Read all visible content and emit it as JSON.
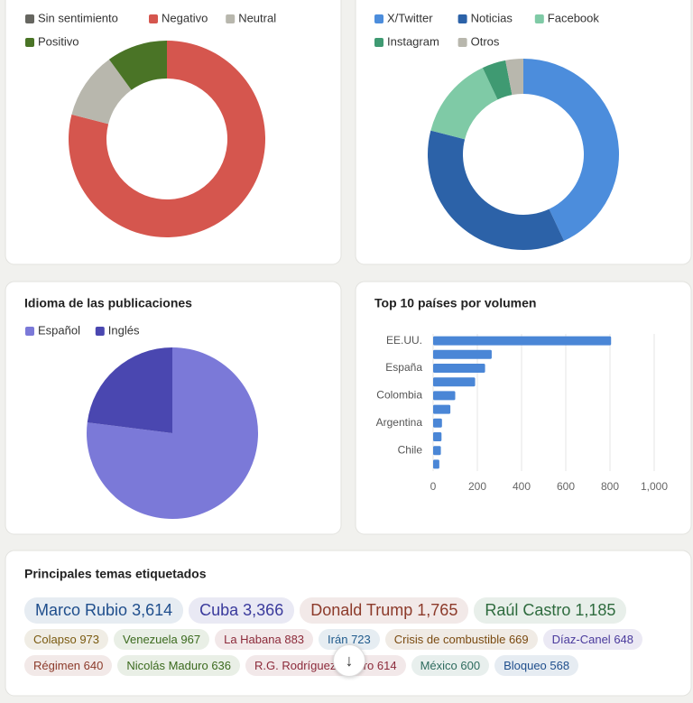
{
  "chart_data": [
    {
      "type": "donut",
      "series": [
        {
          "name": "Sin sentimiento",
          "color": "#666660",
          "values": [
            0
          ]
        },
        {
          "name": "Negativo",
          "color": "#d5564e",
          "values": [
            79
          ]
        },
        {
          "name": "Neutral",
          "color": "#b8b7ad",
          "values": [
            11
          ]
        },
        {
          "name": "Positivo",
          "color": "#4a7426",
          "values": [
            10
          ]
        }
      ]
    },
    {
      "type": "donut",
      "series": [
        {
          "name": "X/Twitter",
          "color": "#4c8ddc",
          "values": [
            43
          ]
        },
        {
          "name": "Noticias",
          "color": "#2c62a8",
          "values": [
            36
          ]
        },
        {
          "name": "Facebook",
          "color": "#7fcaa6",
          "values": [
            14
          ]
        },
        {
          "name": "Instagram",
          "color": "#3f9a72",
          "values": [
            4
          ]
        },
        {
          "name": "Otros",
          "color": "#b8b7ad",
          "values": [
            3
          ]
        }
      ]
    },
    {
      "type": "pie",
      "title": "Idioma de las publicaciones",
      "series": [
        {
          "name": "Español",
          "color": "#7b79d8",
          "values": [
            77
          ]
        },
        {
          "name": "Inglés",
          "color": "#4a47b0",
          "values": [
            23
          ]
        }
      ]
    },
    {
      "type": "hbar",
      "title": "Top 10 países por volumen",
      "color": "#4a86d6",
      "categories": [
        "EE.UU.",
        null,
        "España",
        null,
        "Colombia",
        null,
        "Argentina",
        null,
        "Chile",
        null
      ],
      "values": [
        805,
        265,
        235,
        190,
        100,
        78,
        40,
        38,
        35,
        28
      ],
      "xlim": [
        0,
        1000
      ],
      "xticks": [
        0,
        200,
        400,
        600,
        800,
        {
          "value": 1000,
          "label": "1,000"
        }
      ],
      "grid": true
    }
  ],
  "topics": {
    "title": "Principales temas etiquetados",
    "rows": [
      [
        {
          "name": "Marco Rubio",
          "count": "3,614",
          "color": "#1f4e8c"
        },
        {
          "name": "Cuba",
          "count": "3,366",
          "color": "#3a3a9c"
        },
        {
          "name": "Donald Trump",
          "count": "1,765",
          "color": "#8c3a2a"
        },
        {
          "name": "Raúl Castro",
          "count": "1,185",
          "color": "#2e6b3e"
        }
      ],
      [
        {
          "name": "Colapso",
          "count": "973",
          "color": "#7a5a10"
        },
        {
          "name": "Venezuela",
          "count": "967",
          "color": "#3b6a1e"
        },
        {
          "name": "La Habana",
          "count": "883",
          "color": "#8c2a3a"
        },
        {
          "name": "Irán",
          "count": "723",
          "color": "#1f5a8c"
        },
        {
          "name": "Crisis de combustible",
          "count": "669",
          "color": "#7a4a10"
        },
        {
          "name": "Díaz-Canel",
          "count": "648",
          "color": "#4a3a9c"
        }
      ],
      [
        {
          "name": "Régimen",
          "count": "640",
          "color": "#8c3a2a"
        },
        {
          "name": "Nicolás Maduro",
          "count": "636",
          "color": "#3b6a1e"
        },
        {
          "name": "R.G. Rodríguez Castro",
          "count": "614",
          "color": "#8c2a3a"
        },
        {
          "name": "México",
          "count": "600",
          "color": "#2e6b5e"
        },
        {
          "name": "Bloqueo",
          "count": "568",
          "color": "#1f4e8c"
        }
      ]
    ]
  }
}
